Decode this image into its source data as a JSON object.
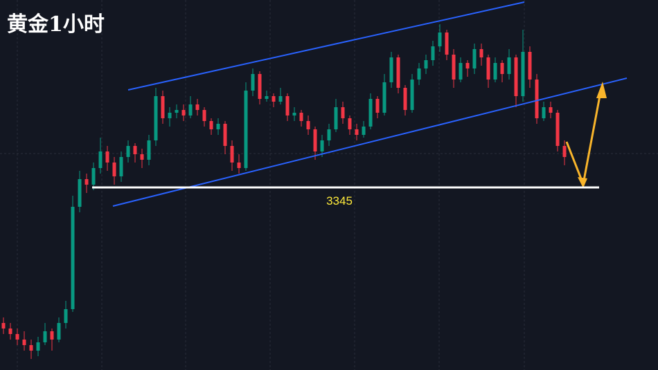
{
  "chart_data": {
    "type": "candlestick",
    "title": "黄金1小时",
    "ylim": [
      3279,
      3412.75
    ],
    "up_color": "#089981",
    "down_color": "#f23645",
    "level": 3345,
    "level_color": "#ffffff",
    "level_label_color": "#ffeb3b",
    "candles": [
      [
        3296,
        3298,
        3292,
        3294
      ],
      [
        3294,
        3296,
        3290,
        3292
      ],
      [
        3292,
        3294,
        3288,
        3290
      ],
      [
        3290,
        3293,
        3286,
        3288
      ],
      [
        3288,
        3290,
        3283,
        3286
      ],
      [
        3286,
        3291,
        3284,
        3289
      ],
      [
        3289,
        3296,
        3288,
        3293
      ],
      [
        3293,
        3294,
        3286,
        3290
      ],
      [
        3290,
        3298,
        3289,
        3296
      ],
      [
        3296,
        3304,
        3294,
        3301
      ],
      [
        3301,
        3342,
        3300,
        3338
      ],
      [
        3338,
        3351,
        3336,
        3348
      ],
      [
        3348,
        3350,
        3343,
        3346
      ],
      [
        3346,
        3354,
        3344,
        3352
      ],
      [
        3352,
        3363,
        3350,
        3358
      ],
      [
        3358,
        3360,
        3351,
        3354
      ],
      [
        3354,
        3356,
        3346,
        3349
      ],
      [
        3349,
        3358,
        3347,
        3356
      ],
      [
        3356,
        3362,
        3354,
        3360
      ],
      [
        3360,
        3361,
        3354,
        3357
      ],
      [
        3357,
        3359,
        3352,
        3355
      ],
      [
        3355,
        3364,
        3353,
        3362
      ],
      [
        3362,
        3381,
        3360,
        3378
      ],
      [
        3378,
        3380,
        3368,
        3370
      ],
      [
        3370,
        3374,
        3367,
        3372
      ],
      [
        3372,
        3375,
        3370,
        3373
      ],
      [
        3373,
        3375,
        3369,
        3371
      ],
      [
        3371,
        3378,
        3370,
        3375
      ],
      [
        3375,
        3377,
        3371,
        3373
      ],
      [
        3373,
        3374,
        3367,
        3369
      ],
      [
        3369,
        3370,
        3364,
        3366
      ],
      [
        3366,
        3370,
        3364,
        3368
      ],
      [
        3368,
        3369,
        3357,
        3360
      ],
      [
        3360,
        3362,
        3351,
        3354
      ],
      [
        3354,
        3357,
        3350,
        3352
      ],
      [
        3352,
        3383,
        3351,
        3380
      ],
      [
        3380,
        3388,
        3378,
        3386
      ],
      [
        3386,
        3387,
        3375,
        3377
      ],
      [
        3377,
        3380,
        3376,
        3378
      ],
      [
        3378,
        3379,
        3374,
        3376
      ],
      [
        3376,
        3381,
        3375,
        3378
      ],
      [
        3378,
        3379,
        3369,
        3371
      ],
      [
        3371,
        3374,
        3369,
        3372
      ],
      [
        3372,
        3373,
        3367,
        3369
      ],
      [
        3369,
        3371,
        3364,
        3366
      ],
      [
        3366,
        3367,
        3355,
        3358
      ],
      [
        3358,
        3364,
        3356,
        3362
      ],
      [
        3362,
        3368,
        3360,
        3366
      ],
      [
        3366,
        3377,
        3365,
        3374
      ],
      [
        3374,
        3376,
        3368,
        3370
      ],
      [
        3370,
        3371,
        3364,
        3366
      ],
      [
        3366,
        3368,
        3362,
        3364
      ],
      [
        3364,
        3369,
        3363,
        3367
      ],
      [
        3367,
        3379,
        3366,
        3377
      ],
      [
        3377,
        3378,
        3370,
        3372
      ],
      [
        3372,
        3386,
        3371,
        3383
      ],
      [
        3383,
        3394,
        3381,
        3392
      ],
      [
        3392,
        3393,
        3379,
        3381
      ],
      [
        3381,
        3382,
        3371,
        3373
      ],
      [
        3373,
        3386,
        3372,
        3384
      ],
      [
        3384,
        3390,
        3382,
        3388
      ],
      [
        3388,
        3393,
        3386,
        3391
      ],
      [
        3391,
        3398,
        3389,
        3396
      ],
      [
        3396,
        3404,
        3394,
        3401
      ],
      [
        3401,
        3402,
        3391,
        3393
      ],
      [
        3393,
        3395,
        3381,
        3384
      ],
      [
        3384,
        3392,
        3383,
        3390
      ],
      [
        3390,
        3391,
        3385,
        3388
      ],
      [
        3388,
        3397,
        3386,
        3395
      ],
      [
        3395,
        3397,
        3389,
        3392
      ],
      [
        3392,
        3393,
        3381,
        3384
      ],
      [
        3384,
        3392,
        3383,
        3390
      ],
      [
        3390,
        3391,
        3383,
        3386
      ],
      [
        3386,
        3395,
        3384,
        3392
      ],
      [
        3392,
        3393,
        3374,
        3378
      ],
      [
        3378,
        3402,
        3376,
        3394
      ],
      [
        3394,
        3396,
        3381,
        3384
      ],
      [
        3384,
        3386,
        3368,
        3370
      ],
      [
        3370,
        3376,
        3369,
        3374
      ],
      [
        3374,
        3376,
        3370,
        3372
      ],
      [
        3372,
        3373,
        3358,
        3360
      ],
      [
        3360,
        3362,
        3353,
        3356
      ]
    ]
  }
}
